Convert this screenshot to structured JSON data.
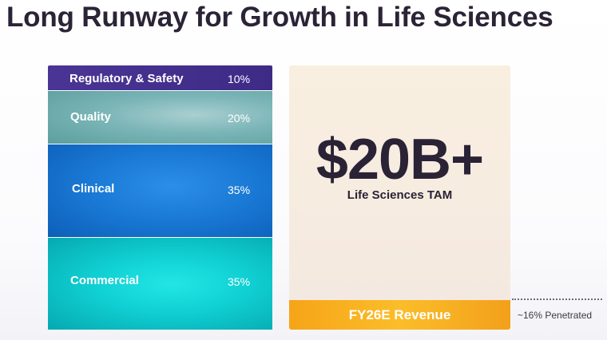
{
  "title": "Long Runway for Growth in Life Sciences",
  "segments": [
    {
      "name": "Regulatory & Safety",
      "percent": "10%"
    },
    {
      "name": "Quality",
      "percent": "20%"
    },
    {
      "name": "Clinical",
      "percent": "35%"
    },
    {
      "name": "Commercial",
      "percent": "35%"
    }
  ],
  "tam": {
    "value": "$20B+",
    "label": "Life Sciences TAM",
    "revenue_label": "FY26E Revenue",
    "penetration": "~16% Penetrated"
  },
  "colors": {
    "regulatory": "#3d2b86",
    "quality": "#7bb5b7",
    "clinical": "#1a7ad6",
    "commercial": "#10cfd2",
    "tam_box": "#f6ebe0",
    "revenue_bar": "#f6a418"
  }
}
